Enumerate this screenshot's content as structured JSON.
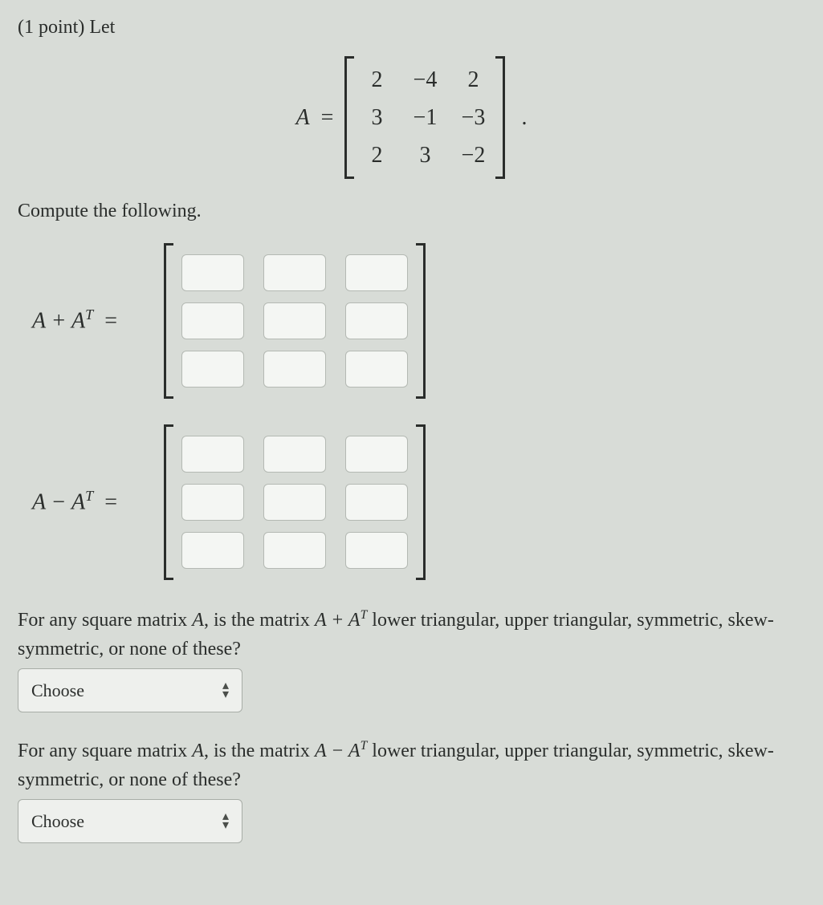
{
  "points_label": "(1 point)",
  "let_label": "Let",
  "matrix_var": "A",
  "equals": "=",
  "matrix_A": {
    "rows": 3,
    "cols": 3,
    "cells": [
      "2",
      "−4",
      "2",
      "3",
      "−1",
      "−3",
      "2",
      "3",
      "−2"
    ]
  },
  "compute_label": "Compute the following.",
  "expr1": {
    "lhs_html": "A + A",
    "sup": "T",
    "rows": 3,
    "cols": 3
  },
  "expr2": {
    "lhs_html": "A − A",
    "sup": "T",
    "rows": 3,
    "cols": 3
  },
  "q1": {
    "pre": "For any square matrix ",
    "var": "A",
    "mid": ", is the matrix ",
    "expr": "A + A",
    "sup": "T",
    "post": " lower triangular, upper triangular, symmetric, skew-symmetric, or none of these?",
    "select_label": "Choose"
  },
  "q2": {
    "pre": "For any square matrix ",
    "var": "A",
    "mid": ", is the matrix ",
    "expr": "A − A",
    "sup": "T",
    "post": " lower triangular, upper triangular, symmetric, skew-symmetric, or none of these?",
    "select_label": "Choose"
  },
  "period": "."
}
